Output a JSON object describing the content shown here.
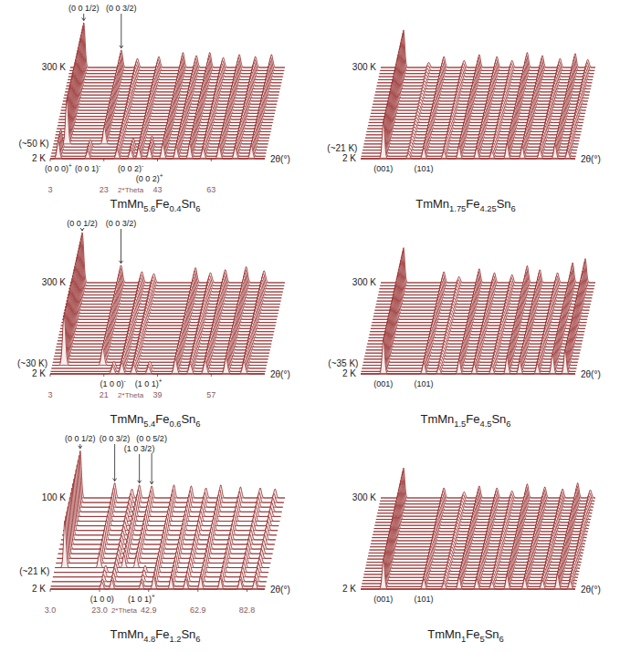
{
  "chart_data": [
    {
      "type": "waterfall",
      "title": "TmMn5.6Fe0.4Sn6",
      "x_label": "2θ(°)",
      "axis_text": "2*Theta",
      "color": "#8b1a1a",
      "xlim": [
        3,
        83
      ],
      "xticks": [
        3,
        23,
        43,
        63
      ],
      "ylim": [
        0,
        100
      ],
      "temperatures": [
        2,
        10,
        20,
        30,
        40,
        50,
        60,
        70,
        80,
        90,
        100,
        110,
        120,
        130,
        140,
        150,
        160,
        170,
        180,
        190,
        200,
        210,
        220,
        230,
        240,
        250,
        260,
        270,
        280,
        290,
        300
      ],
      "temp_labels": [
        {
          "text": "300 K",
          "value": 300
        },
        {
          "text": "(~50 K)",
          "value": 50
        },
        {
          "text": "2 K",
          "value": 2
        }
      ],
      "peaks": [
        {
          "x": 8,
          "intensity": 90,
          "t_range": [
            50,
            300
          ]
        },
        {
          "x": 22,
          "intensity": 35,
          "t_range": [
            50,
            300
          ]
        },
        {
          "x": 6,
          "intensity": 35,
          "t_range": [
            2,
            45
          ]
        },
        {
          "x": 17,
          "intensity": 15,
          "t_range": [
            2,
            45
          ]
        },
        {
          "x": 33,
          "intensity": 18,
          "t_range": [
            2,
            45
          ]
        },
        {
          "x": 40,
          "intensity": 22,
          "t_range": [
            2,
            45
          ]
        },
        {
          "x": 28,
          "intensity": 18,
          "t_range": [
            2,
            300
          ]
        },
        {
          "x": 36,
          "intensity": 22,
          "t_range": [
            2,
            300
          ]
        },
        {
          "x": 45,
          "intensity": 30,
          "t_range": [
            2,
            300
          ]
        },
        {
          "x": 50,
          "intensity": 24,
          "t_range": [
            2,
            300
          ]
        },
        {
          "x": 55,
          "intensity": 30,
          "t_range": [
            2,
            300
          ]
        },
        {
          "x": 60,
          "intensity": 20,
          "t_range": [
            2,
            300
          ]
        },
        {
          "x": 66,
          "intensity": 26,
          "t_range": [
            2,
            300
          ]
        },
        {
          "x": 72,
          "intensity": 22,
          "t_range": [
            2,
            300
          ]
        },
        {
          "x": 78,
          "intensity": 26,
          "t_range": [
            2,
            300
          ]
        }
      ],
      "top_labels": [
        {
          "text": "(0 0 1/2)",
          "x": 8
        },
        {
          "text": "(0 0 3/2)",
          "x": 22
        }
      ],
      "bottom_labels": [
        {
          "text": "(0 0 0)+",
          "x": 6
        },
        {
          "text": "(0 0 1)-",
          "x": 17
        },
        {
          "text": "(0 0 2)-",
          "x": 33
        },
        {
          "text": "(0 0 2)+",
          "x": 40
        }
      ]
    },
    {
      "type": "waterfall",
      "title": "TmMn1.75Fe4.25Sn6",
      "x_label": "2θ(°)",
      "color": "#8b1a1a",
      "tick_labels": false,
      "xlim": [
        5,
        90
      ],
      "ylim": [
        0,
        100
      ],
      "temperatures": [
        2,
        10,
        20,
        30,
        40,
        50,
        60,
        70,
        80,
        90,
        100,
        110,
        120,
        130,
        140,
        150,
        160,
        170,
        180,
        190,
        200,
        210,
        220,
        230,
        240,
        250,
        260,
        270,
        280,
        290,
        300
      ],
      "temp_labels": [
        {
          "text": "300 K",
          "value": 300
        },
        {
          "text": "(~21 K)",
          "value": 21
        },
        {
          "text": "2 K",
          "value": 2
        }
      ],
      "peaks": [
        {
          "x": 14,
          "intensity": 75,
          "t_range": [
            2,
            300
          ]
        },
        {
          "x": 24,
          "intensity": 10,
          "t_range": [
            2,
            300
          ]
        },
        {
          "x": 30,
          "intensity": 22,
          "t_range": [
            2,
            300
          ]
        },
        {
          "x": 38,
          "intensity": 14,
          "t_range": [
            2,
            300
          ]
        },
        {
          "x": 44,
          "intensity": 26,
          "t_range": [
            2,
            300
          ]
        },
        {
          "x": 51,
          "intensity": 22,
          "t_range": [
            2,
            300
          ]
        },
        {
          "x": 57,
          "intensity": 14,
          "t_range": [
            2,
            300
          ]
        },
        {
          "x": 63,
          "intensity": 30,
          "t_range": [
            2,
            300
          ]
        },
        {
          "x": 69,
          "intensity": 24,
          "t_range": [
            2,
            300
          ]
        },
        {
          "x": 76,
          "intensity": 18,
          "t_range": [
            2,
            300
          ]
        },
        {
          "x": 82,
          "intensity": 28,
          "t_range": [
            2,
            300
          ]
        },
        {
          "x": 87,
          "intensity": 16,
          "t_range": [
            2,
            300
          ]
        }
      ],
      "top_labels": [],
      "bottom_labels": [
        {
          "text": "(001)",
          "x": 14
        },
        {
          "text": "(101)",
          "x": 30
        }
      ]
    },
    {
      "type": "waterfall",
      "title": "TmMn5.4Fe0.6Sn6",
      "x_label": "2θ(°)",
      "axis_text": "2*Theta",
      "color": "#8b1a1a",
      "xlim": [
        3,
        75
      ],
      "xticks": [
        3,
        21,
        39,
        57
      ],
      "ylim": [
        0,
        100
      ],
      "temperatures": [
        2,
        10,
        20,
        30,
        40,
        50,
        60,
        70,
        80,
        90,
        100,
        110,
        120,
        130,
        140,
        150,
        160,
        170,
        180,
        190,
        200,
        210,
        220,
        230,
        240,
        250,
        260,
        270,
        280,
        290,
        300
      ],
      "temp_labels": [
        {
          "text": "300 K",
          "value": 300
        },
        {
          "text": "(~30 K)",
          "value": 30
        },
        {
          "text": "2 K",
          "value": 2
        }
      ],
      "peaks": [
        {
          "x": 7,
          "intensity": 100,
          "t_range": [
            30,
            300
          ]
        },
        {
          "x": 20,
          "intensity": 35,
          "t_range": [
            30,
            300
          ]
        },
        {
          "x": 24,
          "intensity": 14,
          "t_range": [
            2,
            29
          ]
        },
        {
          "x": 36,
          "intensity": 14,
          "t_range": [
            2,
            29
          ]
        },
        {
          "x": 27,
          "intensity": 22,
          "t_range": [
            2,
            300
          ]
        },
        {
          "x": 31,
          "intensity": 18,
          "t_range": [
            2,
            300
          ]
        },
        {
          "x": 45,
          "intensity": 30,
          "t_range": [
            2,
            300
          ]
        },
        {
          "x": 50,
          "intensity": 20,
          "t_range": [
            2,
            300
          ]
        },
        {
          "x": 55,
          "intensity": 26,
          "t_range": [
            2,
            300
          ]
        },
        {
          "x": 62,
          "intensity": 32,
          "t_range": [
            2,
            300
          ]
        },
        {
          "x": 68,
          "intensity": 24,
          "t_range": [
            2,
            300
          ]
        }
      ],
      "top_labels": [
        {
          "text": "(0 0 1/2)",
          "x": 7
        },
        {
          "text": "(0 0 3/2)",
          "x": 20
        }
      ],
      "bottom_labels": [
        {
          "text": "(1 0 0)-",
          "x": 24
        },
        {
          "text": "(1 0 1)+",
          "x": 36
        }
      ]
    },
    {
      "type": "waterfall",
      "title": "TmMn1.5Fe4.5Sn6",
      "x_label": "2θ(°)",
      "color": "#8b1a1a",
      "tick_labels": false,
      "xlim": [
        5,
        90
      ],
      "ylim": [
        0,
        100
      ],
      "temperatures": [
        2,
        10,
        20,
        30,
        40,
        50,
        60,
        70,
        80,
        90,
        100,
        110,
        120,
        130,
        140,
        150,
        160,
        170,
        180,
        190,
        200,
        210,
        220,
        230,
        240,
        250,
        260,
        270,
        280,
        290,
        300
      ],
      "temp_labels": [
        {
          "text": "300 K",
          "value": 300
        },
        {
          "text": "(~35 K)",
          "value": 35
        },
        {
          "text": "2 K",
          "value": 2
        }
      ],
      "peaks": [
        {
          "x": 14,
          "intensity": 70,
          "t_range": [
            2,
            300
          ]
        },
        {
          "x": 30,
          "intensity": 22,
          "t_range": [
            2,
            300
          ]
        },
        {
          "x": 36,
          "intensity": 12,
          "t_range": [
            2,
            300
          ]
        },
        {
          "x": 44,
          "intensity": 28,
          "t_range": [
            2,
            300
          ]
        },
        {
          "x": 50,
          "intensity": 20,
          "t_range": [
            2,
            300
          ]
        },
        {
          "x": 57,
          "intensity": 16,
          "t_range": [
            2,
            300
          ]
        },
        {
          "x": 63,
          "intensity": 34,
          "t_range": [
            2,
            300
          ]
        },
        {
          "x": 68,
          "intensity": 26,
          "t_range": [
            2,
            300
          ]
        },
        {
          "x": 75,
          "intensity": 20,
          "t_range": [
            2,
            300
          ]
        },
        {
          "x": 81,
          "intensity": 40,
          "t_range": [
            2,
            300
          ]
        },
        {
          "x": 86,
          "intensity": 48,
          "t_range": [
            2,
            300
          ]
        }
      ],
      "top_labels": [],
      "bottom_labels": [
        {
          "text": "(001)",
          "x": 14
        },
        {
          "text": "(101)",
          "x": 30
        }
      ]
    },
    {
      "type": "waterfall",
      "title": "TmMn4.8Fe1.2Sn6",
      "x_label": "2θ(°)",
      "axis_text": "2*Theta",
      "color": "#8b1a1a",
      "xlim": [
        3,
        90
      ],
      "xticks": [
        {
          "value": 3,
          "label": "3.0"
        },
        {
          "value": 23,
          "label": "23.0"
        },
        {
          "value": 42.9,
          "label": "42.9"
        },
        {
          "value": 62.9,
          "label": "62.9"
        },
        {
          "value": 82.8,
          "label": "82.8"
        }
      ],
      "ylim": [
        0,
        100
      ],
      "temperatures": [
        2,
        5,
        10,
        15,
        20,
        25,
        30,
        35,
        40,
        45,
        50,
        55,
        60,
        65,
        70,
        75,
        80,
        85,
        90,
        95,
        100
      ],
      "temp_labels": [
        {
          "text": "100 K",
          "value": 100
        },
        {
          "text": "(~21 K)",
          "value": 21
        },
        {
          "text": "2 K",
          "value": 2
        }
      ],
      "peaks": [
        {
          "x": 7,
          "intensity": 95,
          "t_range": [
            21,
            100
          ]
        },
        {
          "x": 21,
          "intensity": 30,
          "t_range": [
            21,
            100
          ]
        },
        {
          "x": 31,
          "intensity": 26,
          "t_range": [
            21,
            100
          ]
        },
        {
          "x": 36,
          "intensity": 24,
          "t_range": [
            21,
            100
          ]
        },
        {
          "x": 24,
          "intensity": 14,
          "t_range": [
            2,
            20
          ]
        },
        {
          "x": 40,
          "intensity": 14,
          "t_range": [
            2,
            20
          ]
        },
        {
          "x": 28,
          "intensity": 18,
          "t_range": [
            2,
            100
          ]
        },
        {
          "x": 45,
          "intensity": 26,
          "t_range": [
            2,
            100
          ]
        },
        {
          "x": 52,
          "intensity": 24,
          "t_range": [
            2,
            100
          ]
        },
        {
          "x": 58,
          "intensity": 20,
          "t_range": [
            2,
            100
          ]
        },
        {
          "x": 64,
          "intensity": 26,
          "t_range": [
            2,
            100
          ]
        },
        {
          "x": 72,
          "intensity": 22,
          "t_range": [
            2,
            100
          ]
        },
        {
          "x": 80,
          "intensity": 20,
          "t_range": [
            2,
            100
          ]
        },
        {
          "x": 86,
          "intensity": 18,
          "t_range": [
            2,
            100
          ]
        }
      ],
      "top_labels": [
        {
          "text": "(0 0 1/2)",
          "x": 7
        },
        {
          "text": "(0 0 3/2)",
          "x": 21
        },
        {
          "text": "(1 0 3/2)",
          "x": 31
        },
        {
          "text": "(0 0 5/2)",
          "x": 36
        }
      ],
      "bottom_labels": [
        {
          "text": "(1 0 0)",
          "x": 24
        },
        {
          "text": "(1 0 1)+",
          "x": 40
        }
      ]
    },
    {
      "type": "waterfall",
      "title": "TmMn1Fe5Sn6",
      "x_label": "2θ(°)",
      "color": "#8b1a1a",
      "tick_labels": false,
      "xlim": [
        5,
        90
      ],
      "ylim": [
        0,
        100
      ],
      "temperatures": [
        2,
        10,
        20,
        30,
        40,
        50,
        60,
        70,
        80,
        90,
        100,
        110,
        120,
        130,
        140,
        150,
        160,
        170,
        180,
        190,
        200,
        210,
        220,
        230,
        240,
        250,
        260,
        270,
        280,
        290,
        300
      ],
      "temp_labels": [
        {
          "text": "300 K",
          "value": 300
        },
        {
          "text": "2 K",
          "value": 2
        }
      ],
      "peaks": [
        {
          "x": 14,
          "intensity": 60,
          "t_range": [
            2,
            300
          ]
        },
        {
          "x": 30,
          "intensity": 20,
          "t_range": [
            2,
            300
          ]
        },
        {
          "x": 38,
          "intensity": 12,
          "t_range": [
            2,
            300
          ]
        },
        {
          "x": 44,
          "intensity": 24,
          "t_range": [
            2,
            300
          ]
        },
        {
          "x": 51,
          "intensity": 20,
          "t_range": [
            2,
            300
          ]
        },
        {
          "x": 57,
          "intensity": 14,
          "t_range": [
            2,
            300
          ]
        },
        {
          "x": 63,
          "intensity": 28,
          "t_range": [
            2,
            300
          ]
        },
        {
          "x": 70,
          "intensity": 22,
          "t_range": [
            2,
            300
          ]
        },
        {
          "x": 77,
          "intensity": 18,
          "t_range": [
            2,
            300
          ]
        },
        {
          "x": 83,
          "intensity": 30,
          "t_range": [
            2,
            300
          ]
        },
        {
          "x": 88,
          "intensity": 16,
          "t_range": [
            2,
            300
          ]
        }
      ],
      "top_labels": [],
      "bottom_labels": [
        {
          "text": "(001)",
          "x": 14
        },
        {
          "text": "(101)",
          "x": 30
        }
      ]
    }
  ]
}
